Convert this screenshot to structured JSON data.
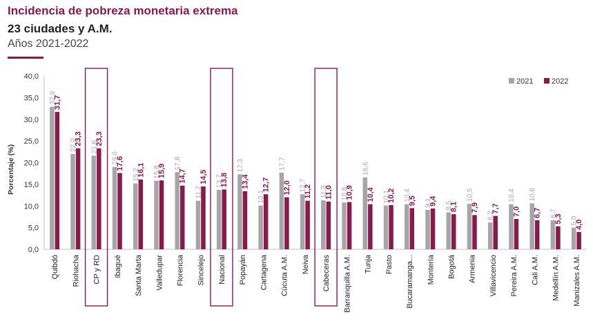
{
  "header": {
    "title": "Incidencia de pobreza monetaria extrema",
    "subtitle": "23 ciudades y A.M.",
    "years": "Años 2021-2022"
  },
  "colors": {
    "accent": "#8a1a4b",
    "series_2021": "#a6a6a6",
    "series_2022": "#8a1a4b",
    "highlight_box": "#8a1a4b"
  },
  "chart_data": {
    "type": "bar",
    "ylabel": "Porcentaje (%)",
    "ylim": [
      0,
      40
    ],
    "yticks": [
      "0,0",
      "5,0",
      "10,0",
      "15,0",
      "20,0",
      "25,0",
      "30,0",
      "35,0",
      "40,0"
    ],
    "legend_position": "top-right",
    "grid": false,
    "categories": [
      "Quibdó",
      "Riohacha",
      "CP y RD",
      "Ibagué",
      "Santa Marta",
      "Valledupar",
      "Florencia",
      "Sincelejo",
      "Nacional",
      "Popayán",
      "Cartagena",
      "Cúcuta A.M.",
      "Neiva",
      "Cabeceras",
      "Barranquilla A.M.",
      "Tunja",
      "Pasto",
      "Bucaramanga...",
      "Montería",
      "Bogotá",
      "Armenia",
      "Villavicencio",
      "Pereira A.M.",
      "Cali A.M.",
      "Medellín A.M.",
      "Manizales A.M."
    ],
    "highlighted": [
      "CP y RD",
      "Nacional",
      "Cabeceras"
    ],
    "series": [
      {
        "name": "2021",
        "values": [
          32.9,
          22.0,
          21.6,
          19.0,
          15.2,
          15.8,
          17.8,
          11.2,
          13.7,
          17.3,
          10.1,
          17.7,
          12.7,
          11.3,
          10.8,
          16.6,
          10.1,
          10.4,
          9.1,
          8.5,
          10.5,
          6.2,
          10.4,
          10.6,
          6.7,
          5.0
        ],
        "labels": [
          "32,9",
          "22,0",
          "21,6",
          "19,0",
          "15,2",
          "15,8",
          "17,8",
          "11,2",
          "13,7",
          "17,3",
          "10,1",
          "17,7",
          "12,7",
          "11,3",
          "10,8",
          "16,6",
          "10,1",
          "10,4",
          "9,1",
          "8,5",
          "10,5",
          "6,2",
          "10,4",
          "10,6",
          "6,7",
          "5,0"
        ]
      },
      {
        "name": "2022",
        "values": [
          31.7,
          23.3,
          23.3,
          17.6,
          16.1,
          15.9,
          14.7,
          14.5,
          13.8,
          13.4,
          12.7,
          12.0,
          11.2,
          11.0,
          10.9,
          10.4,
          10.2,
          9.5,
          9.4,
          8.1,
          7.9,
          7.7,
          7.0,
          6.7,
          5.3,
          4.0
        ],
        "labels": [
          "31,7",
          "23,3",
          "23,3",
          "17,6",
          "16,1",
          "15,9",
          "14,7",
          "14,5",
          "13,8",
          "13,4",
          "12,7",
          "12,0",
          "11,2",
          "11,0",
          "10,9",
          "10,4",
          "10,2",
          "9,5",
          "9,4",
          "8,1",
          "7,9",
          "7,7",
          "7,0",
          "6,7",
          "5,3",
          "4,0"
        ]
      }
    ]
  }
}
